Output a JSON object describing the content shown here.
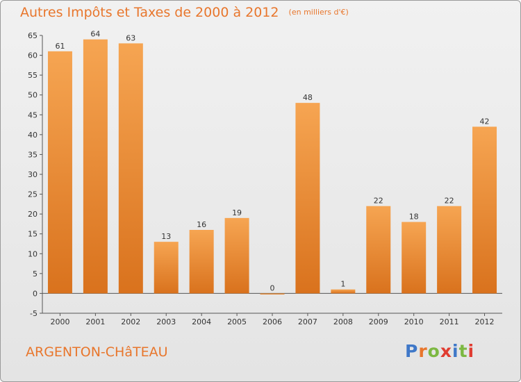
{
  "header": {
    "title": "Autres Impôts et Taxes de 2000 à 2012",
    "unit": "(en milliers d'€)"
  },
  "footer": {
    "commune": "ARGENTON-CHâTEAU",
    "logo_letters": [
      "P",
      "r",
      "o",
      "x",
      "i",
      "t",
      "i"
    ]
  },
  "colors": {
    "bar_top": "#f6a552",
    "bar_bottom": "#d9721d",
    "accent": "#e8762c",
    "logo": [
      "#3f78c8",
      "#e8762c",
      "#7cb842",
      "#e03c31",
      "#3f78c8",
      "#7cb842",
      "#e03c31"
    ]
  },
  "chart_data": {
    "type": "bar",
    "categories": [
      "2000",
      "2001",
      "2002",
      "2003",
      "2004",
      "2005",
      "2006",
      "2007",
      "2008",
      "2009",
      "2010",
      "2011",
      "2012"
    ],
    "values": [
      61,
      64,
      63,
      13,
      16,
      19,
      0,
      48,
      1,
      22,
      18,
      22,
      42
    ],
    "ylim": [
      -5,
      65
    ],
    "yticks": [
      -5,
      0,
      5,
      10,
      15,
      20,
      25,
      30,
      35,
      40,
      45,
      50,
      55,
      60,
      65
    ],
    "grid": false,
    "data_labels": true
  }
}
